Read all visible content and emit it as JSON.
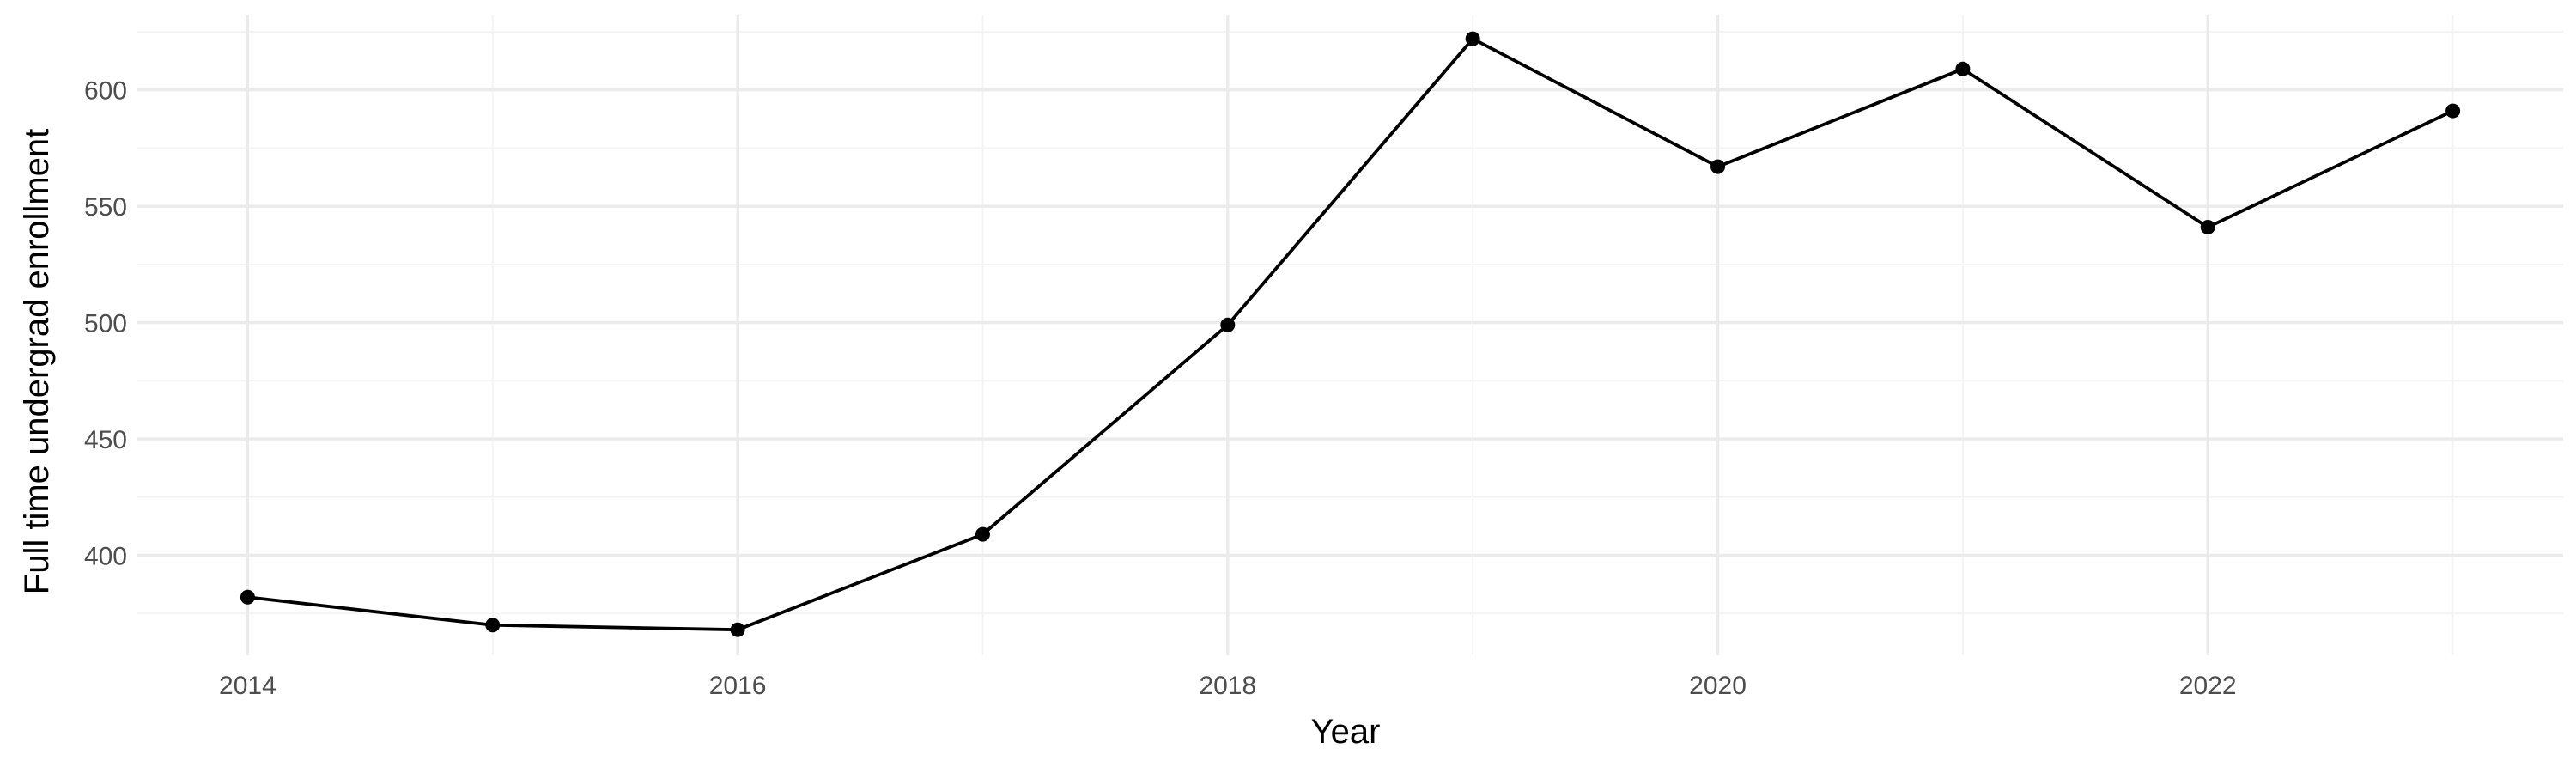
{
  "chart_data": {
    "type": "line",
    "title": "",
    "xlabel": "Year",
    "ylabel": "Full time undergrad enrollment",
    "x": [
      2014,
      2015,
      2016,
      2017,
      2018,
      2019,
      2020,
      2021,
      2022,
      2023
    ],
    "series": [
      {
        "values": [
          382,
          370,
          368,
          409,
          499,
          622,
          567,
          609,
          541,
          591
        ]
      }
    ],
    "xlim": [
      2013.55,
      2023.45
    ],
    "ylim": [
      357,
      632
    ],
    "x_ticks": [
      2014,
      2016,
      2018,
      2020,
      2022
    ],
    "x_tick_labels": [
      "2014",
      "2016",
      "2018",
      "2020",
      "2022"
    ],
    "y_ticks": [
      400,
      450,
      500,
      550,
      600
    ],
    "y_tick_labels": [
      "400",
      "450",
      "500",
      "550",
      "600"
    ],
    "grid": true,
    "legend": "none",
    "colors": {
      "line": "#000000",
      "grid": "#ebebeb",
      "tick_label": "#4d4d4d"
    }
  }
}
